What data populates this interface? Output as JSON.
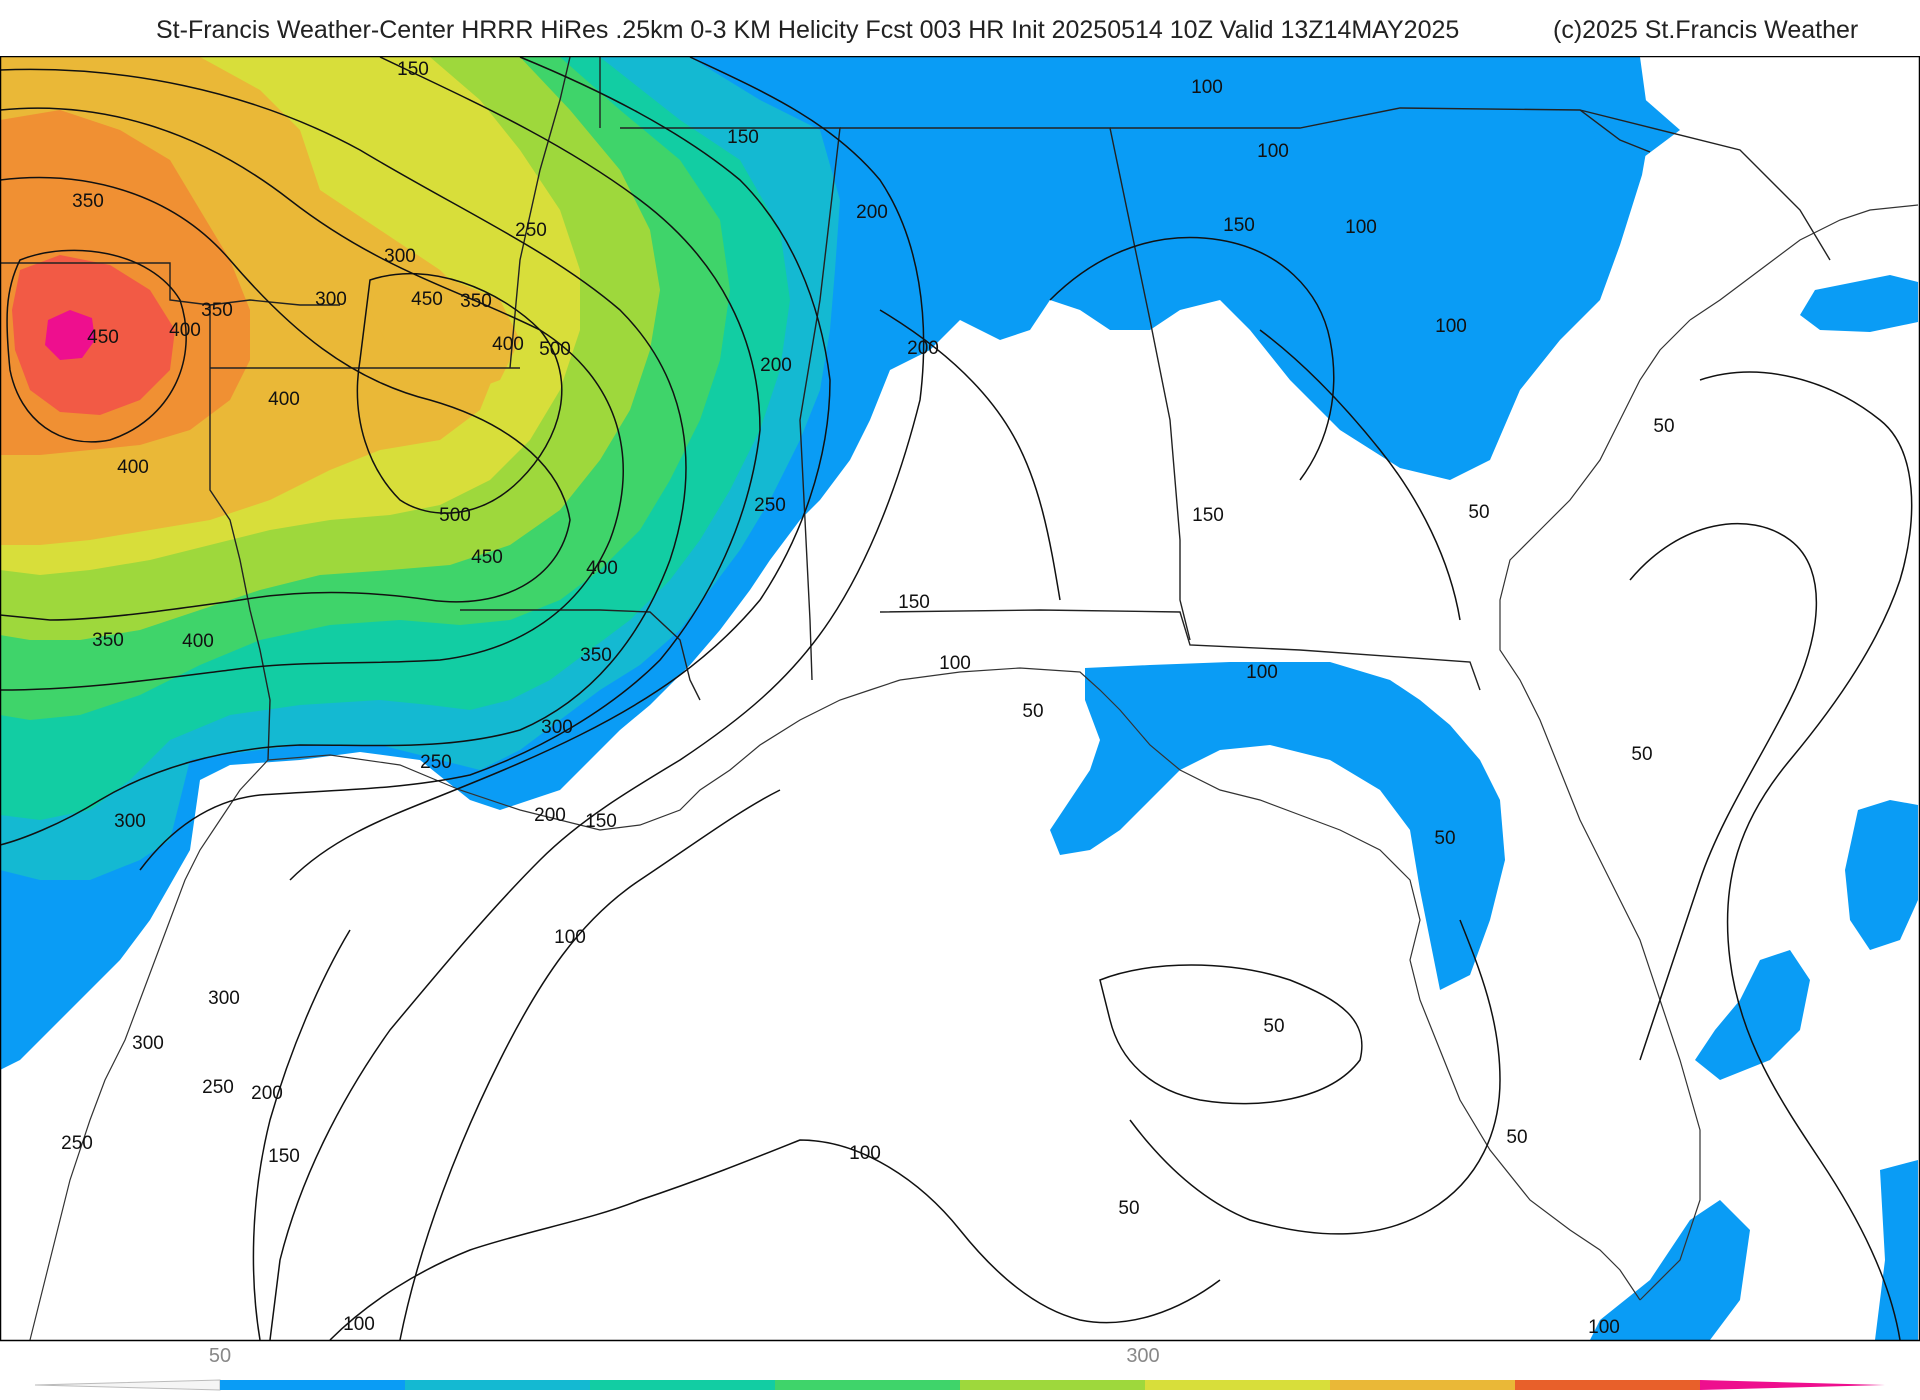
{
  "header": {
    "title": "St-Francis Weather-Center HRRR HiRes .25km 0-3 KM Helicity Fcst 003 HR Init 20250514 10Z  Valid 13Z14MAY2025",
    "copyright": "(c)2025 St.Francis Weather"
  },
  "colors": {
    "band_50_100": "#0a9cf5",
    "band_100_150": "#14b9d2",
    "band_150_200": "#12cda3",
    "band_200_250": "#3fd46a",
    "band_250_300": "#9ed83c",
    "band_300_350": "#d8de3a",
    "band_350_400": "#eab837",
    "band_400_450": "#f09033",
    "band_450_500": "#f25a45",
    "band_500_plus": "#ee0f8e",
    "contour": "#111111",
    "border": "#b9b9b9"
  },
  "map": {
    "contour_labels": {
      "l01": "150",
      "l02": "350",
      "l03": "250",
      "l04": "300",
      "l05": "300",
      "l06": "350",
      "l07": "450",
      "l08": "400",
      "l09": "450",
      "l10": "350",
      "l11": "400",
      "l12": "500",
      "l13": "400",
      "l14": "400",
      "l15": "500",
      "l16": "450",
      "l17": "400",
      "l18": "350",
      "l19": "400",
      "l20": "350",
      "l21": "300",
      "l22": "250",
      "l23": "200",
      "l24": "150",
      "l25": "300",
      "l26": "300",
      "l27": "300",
      "l28": "250",
      "l29": "200",
      "l30": "250",
      "l31": "150",
      "l32": "150",
      "l33": "200",
      "l34": "200",
      "l35": "200",
      "l36": "250",
      "l37": "100",
      "l38": "100",
      "l39": "150",
      "l40": "100",
      "l41": "100",
      "l42": "150",
      "l43": "150",
      "l44": "100",
      "l45": "100",
      "l46": "50",
      "l47": "50",
      "l48": "50",
      "l49": "50",
      "l50": "50",
      "l51": "50",
      "l52": "50",
      "l53": "50",
      "l54": "100",
      "l55": "100",
      "l56": "100",
      "l57": "100"
    }
  },
  "colorbar": {
    "label_left": "50",
    "label_right": "300"
  }
}
